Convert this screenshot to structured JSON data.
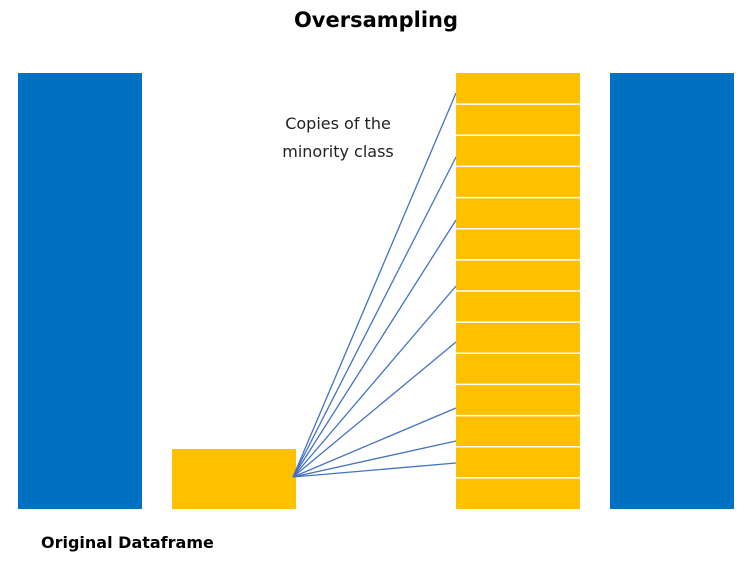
{
  "title": "Oversampling",
  "annotation": {
    "line1": "Copies of the",
    "line2": "minority class"
  },
  "footer_label": "Original Dataframe",
  "colors": {
    "majority": "#0070C0",
    "minority": "#FFC000",
    "connector": "#4472C4",
    "divider": "#ffffff"
  },
  "minority_copies": 14
}
